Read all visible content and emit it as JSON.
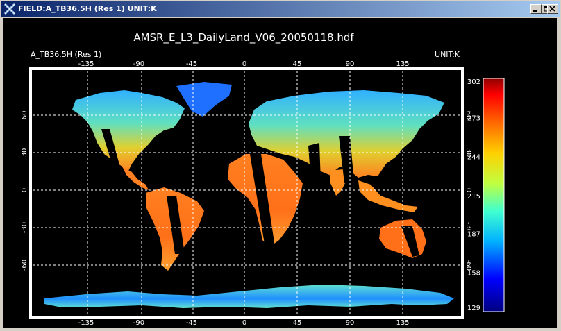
{
  "window": {
    "title": "FIELD:A_TB36.5H (Res 1)  UNIT:K",
    "icon": "idl-x-icon",
    "controls": [
      "minimize-icon",
      "maximize-icon",
      "close-icon"
    ]
  },
  "plot": {
    "title": "AMSR_E_L3_DailyLand_V06_20050118.hdf",
    "field_label": "A_TB36.5H (Res 1)",
    "unit_label": "UNIT:K",
    "lon_ticks": [
      "-135",
      "-90",
      "-45",
      "0",
      "45",
      "90",
      "135"
    ],
    "lat_ticks": [
      "60",
      "30",
      "0",
      "-30",
      "-60"
    ],
    "lon_values": [
      -135,
      -90,
      -45,
      0,
      45,
      90,
      135
    ],
    "lat_values": [
      60,
      30,
      0,
      -30,
      -60
    ],
    "colorbar_ticks": [
      "302",
      "273",
      "244",
      "215",
      "187",
      "158",
      "129"
    ],
    "colorbar_range": [
      129,
      302
    ],
    "colors": {
      "background": "#000000",
      "frame": "#ffffff",
      "grid": "#ffffff",
      "no_data": "#000000"
    }
  }
}
